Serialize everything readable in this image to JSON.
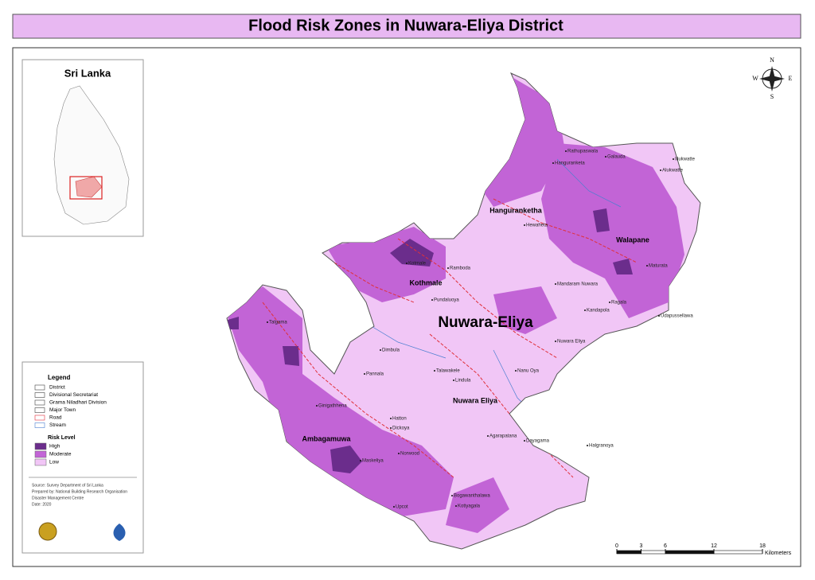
{
  "header": {
    "title": "Flood Risk Zones in Nuwara-Eliya District"
  },
  "inset": {
    "title": "Sri Lanka"
  },
  "legend": {
    "title": "Legend",
    "items": [
      "District",
      "Divisional Secretariat",
      "Grama Niladhari Division",
      "Major Town",
      "Road",
      "Stream"
    ],
    "risk_title": "Risk Level",
    "risk": [
      {
        "label": "High",
        "color": "#6b2d8c"
      },
      {
        "label": "Moderate",
        "color": "#c264d6"
      },
      {
        "label": "Low",
        "color": "#f1c6f6"
      }
    ]
  },
  "credits": [
    "Source: Survey Department of Sri Lanka",
    "Prepared by: National Building Research Organisation",
    "Disaster Management Centre",
    "Date: 2020"
  ],
  "compass": {
    "n": "N",
    "e": "E",
    "s": "S",
    "w": "W"
  },
  "scale": {
    "ticks": [
      0,
      3,
      6,
      12,
      18
    ],
    "unit": "Kilometers"
  },
  "map": {
    "district_label": "Nuwara-Eliya",
    "divisions": [
      "Hanguranketha",
      "Walapane",
      "Kothmale",
      "Ambagamuwa",
      "Nuwara Eliya"
    ],
    "towns": [
      "Rathupaswala",
      "Galauda",
      "Illukwatte",
      "Hanguranketa",
      "Alukwatte",
      "Ramboda",
      "Mandaram Nuwara",
      "Kotmale",
      "Pundaluoya",
      "Dimbula",
      "Nanu Oya",
      "Nuwara Eliya",
      "Kandapola",
      "Ragala",
      "Udapussellawa",
      "Hewaheta",
      "Maturata",
      "Talawakele",
      "Lindula",
      "Agarapatana",
      "Dayagama",
      "Halgranoya",
      "Hatton",
      "Dickoya",
      "Norwood",
      "Bogawanthalawa",
      "Kotiyagala",
      "Upcot",
      "Maskeliya",
      "Ginigathhena",
      "Talgama",
      "Pannala"
    ]
  }
}
